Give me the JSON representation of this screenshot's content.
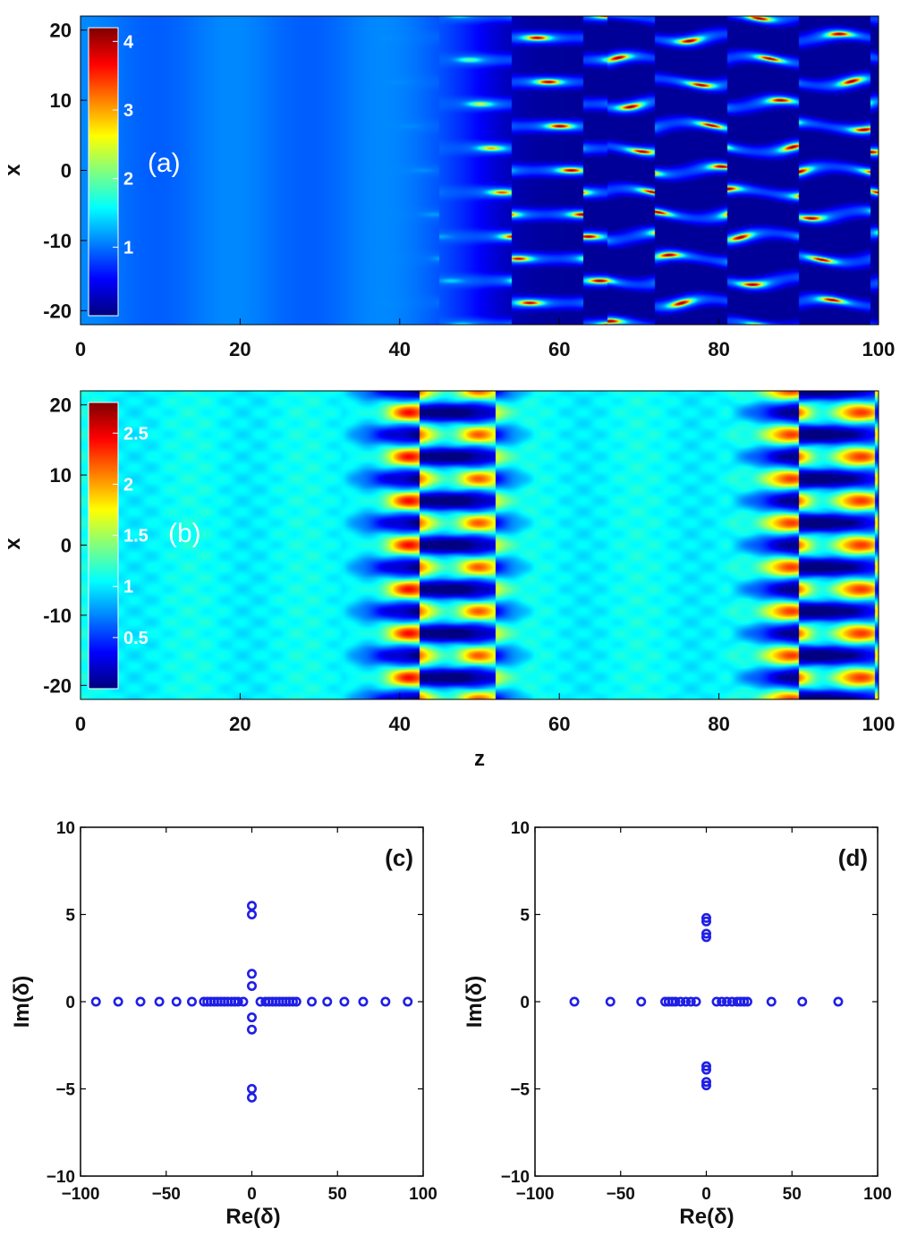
{
  "chart_data": [
    {
      "id": "a",
      "type": "heatmap",
      "panel_label": "(a)",
      "xlabel": "",
      "ylabel": "x",
      "xlim": [
        0,
        100
      ],
      "ylim": [
        -22,
        22
      ],
      "xticks": [
        0,
        20,
        40,
        60,
        80,
        100
      ],
      "yticks": [
        -20,
        -10,
        0,
        10,
        20
      ],
      "colorbar": {
        "min": 0,
        "max": 4.2,
        "ticks": [
          1,
          2,
          3,
          4
        ],
        "tick_labels": [
          "1",
          "2",
          "3",
          "4"
        ]
      },
      "field": {
        "uniform_end_z": 48,
        "filament_period_x": 6.3,
        "peak_value": 4.2
      }
    },
    {
      "id": "b",
      "type": "heatmap",
      "panel_label": "(b)",
      "xlabel": "z",
      "ylabel": "x",
      "xlim": [
        0,
        100
      ],
      "ylim": [
        -22,
        22
      ],
      "xticks": [
        0,
        20,
        40,
        60,
        80,
        100
      ],
      "yticks": [
        -20,
        -10,
        0,
        10,
        20
      ],
      "colorbar": {
        "min": 0,
        "max": 2.8,
        "ticks": [
          0.5,
          1,
          1.5,
          2,
          2.5
        ],
        "tick_labels": [
          "0.5",
          "1",
          "1.5",
          "2",
          "2.5"
        ]
      },
      "field": {
        "uniform_end_z": 22,
        "filament_period_x": 6.3,
        "peak_value": 2.7,
        "breathing_period_z": 50
      }
    },
    {
      "id": "c",
      "type": "scatter",
      "panel_label": "(c)",
      "xlabel": "Re(δ)",
      "ylabel": "Im(δ)",
      "xlim": [
        -100,
        100
      ],
      "ylim": [
        -10,
        10
      ],
      "xticks": [
        -100,
        -50,
        0,
        50,
        100
      ],
      "xtick_labels": [
        "−100",
        "−50",
        "0",
        "50",
        "100"
      ],
      "yticks": [
        -10,
        -5,
        0,
        5,
        10
      ],
      "ytick_labels": [
        "−10",
        "−5",
        "0",
        "5",
        "10"
      ],
      "marker_color": "#1f1fe6",
      "points": [
        [
          -91,
          0
        ],
        [
          -78,
          0
        ],
        [
          -65,
          0
        ],
        [
          -54,
          0
        ],
        [
          -44,
          0
        ],
        [
          -35,
          0
        ],
        [
          -28,
          0
        ],
        [
          -26,
          0
        ],
        [
          -24,
          0
        ],
        [
          -22,
          0
        ],
        [
          -20,
          0
        ],
        [
          -18,
          0
        ],
        [
          -16,
          0
        ],
        [
          -14,
          0
        ],
        [
          -12,
          0
        ],
        [
          -10,
          0
        ],
        [
          -8,
          0
        ],
        [
          -5,
          0
        ],
        [
          5,
          0
        ],
        [
          8,
          0
        ],
        [
          10,
          0
        ],
        [
          12,
          0
        ],
        [
          14,
          0
        ],
        [
          16,
          0
        ],
        [
          18,
          0
        ],
        [
          20,
          0
        ],
        [
          22,
          0
        ],
        [
          24,
          0
        ],
        [
          26,
          0
        ],
        [
          35,
          0
        ],
        [
          44,
          0
        ],
        [
          54,
          0
        ],
        [
          65,
          0
        ],
        [
          78,
          0
        ],
        [
          91,
          0
        ],
        [
          0,
          5.5
        ],
        [
          0,
          5.0
        ],
        [
          0,
          1.6
        ],
        [
          0,
          0.9
        ],
        [
          0,
          -0.9
        ],
        [
          0,
          -1.6
        ],
        [
          0,
          -5.0
        ],
        [
          0,
          -5.5
        ]
      ]
    },
    {
      "id": "d",
      "type": "scatter",
      "panel_label": "(d)",
      "xlabel": "Re(δ)",
      "ylabel": "Im(δ)",
      "xlim": [
        -100,
        100
      ],
      "ylim": [
        -10,
        10
      ],
      "xticks": [
        -100,
        -50,
        0,
        50,
        100
      ],
      "xtick_labels": [
        "−100",
        "−50",
        "0",
        "50",
        "100"
      ],
      "yticks": [
        -10,
        -5,
        0,
        5,
        10
      ],
      "ytick_labels": [
        "−10",
        "−5",
        "0",
        "5",
        "10"
      ],
      "marker_color": "#1f1fe6",
      "points": [
        [
          -77,
          0
        ],
        [
          -56,
          0
        ],
        [
          -38,
          0
        ],
        [
          -24,
          0
        ],
        [
          -22,
          0
        ],
        [
          -20,
          0
        ],
        [
          -18,
          0
        ],
        [
          -15,
          0
        ],
        [
          -12,
          0
        ],
        [
          -9,
          0
        ],
        [
          -6,
          0
        ],
        [
          6,
          0
        ],
        [
          9,
          0
        ],
        [
          12,
          0
        ],
        [
          15,
          0
        ],
        [
          18,
          0
        ],
        [
          20,
          0
        ],
        [
          22,
          0
        ],
        [
          24,
          0
        ],
        [
          38,
          0
        ],
        [
          56,
          0
        ],
        [
          77,
          0
        ],
        [
          0,
          4.8
        ],
        [
          0,
          4.6
        ],
        [
          0,
          3.9
        ],
        [
          0,
          3.7
        ],
        [
          0,
          -3.7
        ],
        [
          0,
          -3.9
        ],
        [
          0,
          -4.6
        ],
        [
          0,
          -4.8
        ]
      ]
    }
  ]
}
